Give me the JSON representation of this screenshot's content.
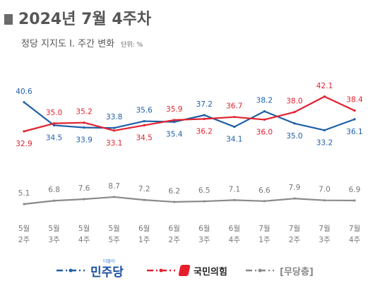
{
  "header": {
    "title": "2024년 7월 4주차",
    "subtitle": "정당 지지도 Ⅰ. 주간 변화",
    "unit": "단위: %"
  },
  "legend": {
    "democratic": "민주당",
    "democratic_small": "더불어",
    "ppp": "국민의힘",
    "independent": "[무당층]"
  },
  "colors": {
    "democratic": "#1f5fa6",
    "ppp": "#e1222f",
    "independent": "#8a8a8a",
    "value_label": "#1f5fa6",
    "ppp_label": "#e1222f",
    "ind_label": "#777777",
    "axis_label": "#777777"
  },
  "chart_data": {
    "type": "line",
    "categories": [
      [
        "5월",
        "2주"
      ],
      [
        "5월",
        "3주"
      ],
      [
        "5월",
        "4주"
      ],
      [
        "5월",
        "5주"
      ],
      [
        "6월",
        "1주"
      ],
      [
        "6월",
        "2주"
      ],
      [
        "6월",
        "3주"
      ],
      [
        "6월",
        "4주"
      ],
      [
        "7월",
        "1주"
      ],
      [
        "7월",
        "2주"
      ],
      [
        "7월",
        "3주"
      ],
      [
        "7월",
        "4주"
      ]
    ],
    "series": [
      {
        "key": "democratic",
        "name": "민주당",
        "line_style": "dash-dot",
        "values": [
          40.6,
          34.5,
          33.9,
          33.8,
          35.6,
          35.4,
          37.2,
          34.1,
          38.2,
          35.0,
          33.2,
          36.1
        ]
      },
      {
        "key": "ppp",
        "name": "국민의힘",
        "line_style": "dash-dot",
        "values": [
          32.9,
          35.0,
          35.2,
          33.1,
          34.5,
          35.9,
          36.2,
          36.7,
          36.0,
          38.0,
          42.1,
          38.4
        ]
      },
      {
        "key": "independent",
        "name": "[무당층]",
        "line_style": "dash-dot",
        "values": [
          5.1,
          6.8,
          7.6,
          8.7,
          7.2,
          6.2,
          6.5,
          7.1,
          6.6,
          7.9,
          7.0,
          6.9
        ]
      }
    ],
    "ylabel": "",
    "xlabel": "",
    "grid": false,
    "legend_position": "bottom"
  }
}
